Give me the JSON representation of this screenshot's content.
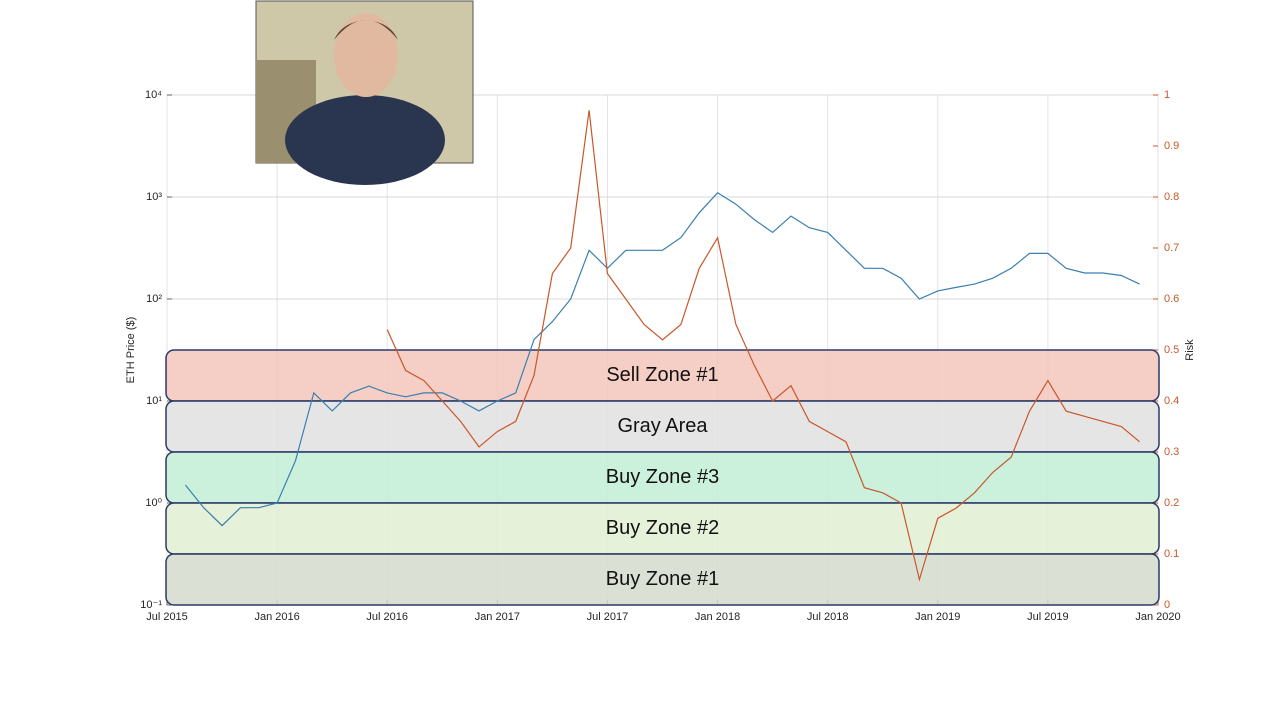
{
  "chart_data": {
    "type": "line",
    "ylabel": "ETH Price ($)",
    "y2label": "Risk",
    "log_y": true,
    "grid": true,
    "xlim": [
      "2015-07",
      "2020-01"
    ],
    "xticks": [
      {
        "value": "2015-07",
        "label": "Jul 2015"
      },
      {
        "value": "2016-01",
        "label": "Jan 2016"
      },
      {
        "value": "2016-07",
        "label": "Jul 2016"
      },
      {
        "value": "2017-01",
        "label": "Jan 2017"
      },
      {
        "value": "2017-07",
        "label": "Jul 2017"
      },
      {
        "value": "2018-01",
        "label": "Jan 2018"
      },
      {
        "value": "2018-07",
        "label": "Jul 2018"
      },
      {
        "value": "2019-01",
        "label": "Jan 2019"
      },
      {
        "value": "2019-07",
        "label": "Jul 2019"
      },
      {
        "value": "2020-01",
        "label": "Jan 2020"
      }
    ],
    "ylim": [
      0.1,
      10000
    ],
    "yticks": [
      {
        "value": 0.1,
        "label": "10⁻¹"
      },
      {
        "value": 1,
        "label": "10⁰"
      },
      {
        "value": 10,
        "label": "10¹"
      },
      {
        "value": 100,
        "label": "10²"
      },
      {
        "value": 1000,
        "label": "10³"
      },
      {
        "value": 10000,
        "label": "10⁴"
      }
    ],
    "y2lim": [
      0,
      1
    ],
    "y2ticks": [
      0,
      0.1,
      0.2,
      0.3,
      0.4,
      0.5,
      0.6,
      0.7,
      0.8,
      0.9,
      1
    ],
    "x": [
      "2015-08",
      "2015-09",
      "2015-10",
      "2015-11",
      "2015-12",
      "2016-01",
      "2016-02",
      "2016-03",
      "2016-04",
      "2016-05",
      "2016-06",
      "2016-07",
      "2016-08",
      "2016-09",
      "2016-10",
      "2016-11",
      "2016-12",
      "2017-01",
      "2017-02",
      "2017-03",
      "2017-04",
      "2017-05",
      "2017-06",
      "2017-07",
      "2017-08",
      "2017-09",
      "2017-10",
      "2017-11",
      "2017-12",
      "2018-01",
      "2018-02",
      "2018-03",
      "2018-04",
      "2018-05",
      "2018-06",
      "2018-07",
      "2018-08",
      "2018-09",
      "2018-10",
      "2018-11",
      "2018-12",
      "2019-01",
      "2019-02",
      "2019-03",
      "2019-04",
      "2019-05",
      "2019-06",
      "2019-07",
      "2019-08",
      "2019-09",
      "2019-10",
      "2019-11",
      "2019-12"
    ],
    "series": [
      {
        "name": "ETH Price",
        "color": "#3a7fb0",
        "values": [
          1.5,
          0.9,
          0.6,
          0.9,
          0.9,
          1.0,
          2.6,
          12,
          8,
          12,
          14,
          12,
          11,
          12,
          12,
          10,
          8,
          10,
          12,
          40,
          60,
          100,
          300,
          200,
          300,
          300,
          300,
          400,
          700,
          1100,
          850,
          600,
          450,
          650,
          500,
          450,
          300,
          200,
          200,
          160,
          100,
          120,
          130,
          140,
          160,
          200,
          280,
          280,
          200,
          180,
          180,
          170,
          140
        ]
      },
      {
        "name": "Risk",
        "color": "#c8582a",
        "axis": "y2",
        "values": [
          null,
          null,
          null,
          null,
          null,
          null,
          null,
          null,
          null,
          null,
          null,
          0.54,
          0.46,
          0.44,
          0.4,
          0.36,
          0.31,
          0.34,
          0.36,
          0.45,
          0.65,
          0.7,
          0.97,
          0.65,
          0.6,
          0.55,
          0.52,
          0.55,
          0.66,
          0.72,
          0.55,
          0.47,
          0.4,
          0.43,
          0.36,
          0.34,
          0.32,
          0.23,
          0.22,
          0.2,
          0.05,
          0.17,
          0.19,
          0.22,
          0.26,
          0.29,
          0.38,
          0.44,
          0.38,
          0.37,
          0.36,
          0.35,
          0.32
        ]
      }
    ],
    "zones": [
      {
        "label": "Sell Zone #1",
        "range": [
          0.4,
          0.5
        ],
        "color": "#f3c6bc"
      },
      {
        "label": "Gray Area",
        "range": [
          0.3,
          0.4
        ],
        "color": "#e0e0e2"
      },
      {
        "label": "Buy Zone #3",
        "range": [
          0.2,
          0.3
        ],
        "color": "#c2efd6"
      },
      {
        "label": "Buy Zone #2",
        "range": [
          0.1,
          0.2
        ],
        "color": "#e2efd2"
      },
      {
        "label": "Buy Zone #1",
        "range": [
          0,
          0.1
        ],
        "color": "#d3dccd"
      }
    ]
  }
}
